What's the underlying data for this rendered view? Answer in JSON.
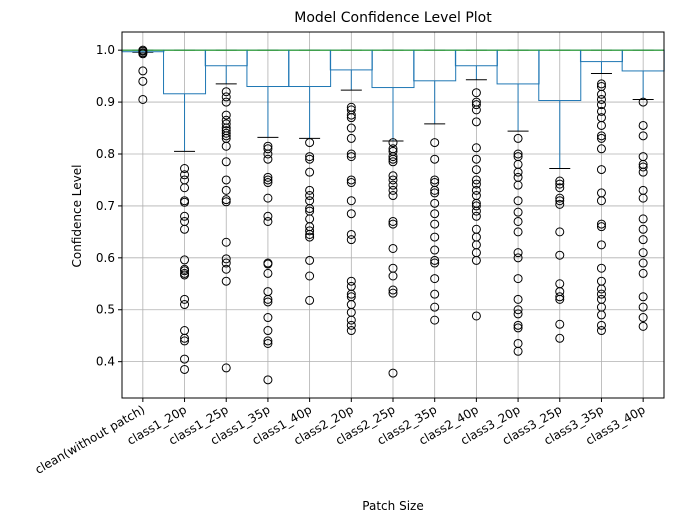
{
  "chart_data": {
    "type": "boxplot",
    "title": "Model Confidence Level Plot",
    "xlabel": "Patch Size",
    "ylabel": "Confidence Level",
    "ylim": [
      0.33,
      1.035
    ],
    "yticks": [
      0.4,
      0.5,
      0.6,
      0.7,
      0.8,
      0.9,
      1.0
    ],
    "ytick_labels": [
      "0.4",
      "0.5",
      "0.6",
      "0.7",
      "0.8",
      "0.9",
      "1.0"
    ],
    "grid": true,
    "categories": [
      "clean(without patch)",
      "class1_20p",
      "class1_25p",
      "class1_35p",
      "class1_40p",
      "class2_20p",
      "class2_25p",
      "class2_35p",
      "class2_40p",
      "class3_20p",
      "class3_25p",
      "class3_35p",
      "class3_40p"
    ],
    "colors": {
      "box": "#1f77b4",
      "median": "#2ca02c",
      "whisker": "#1f77b4",
      "cap": "#000000",
      "flier": "#000000",
      "grid": "#b0b0b0"
    },
    "boxes": [
      {
        "q1": 0.997,
        "median": 1.0,
        "q3": 1.0,
        "whislo": 0.996,
        "whishi": 1.0,
        "fliers": [
          0.905,
          0.94,
          0.96,
          0.993,
          0.995,
          0.998,
          1.0
        ]
      },
      {
        "q1": 0.916,
        "median": 1.0,
        "q3": 1.0,
        "whislo": 0.805,
        "whishi": 1.0,
        "fliers": [
          0.772,
          0.76,
          0.75,
          0.735,
          0.71,
          0.707,
          0.68,
          0.67,
          0.655,
          0.596,
          0.578,
          0.575,
          0.57,
          0.567,
          0.52,
          0.51,
          0.46,
          0.445,
          0.44,
          0.405,
          0.385
        ]
      },
      {
        "q1": 0.97,
        "median": 1.0,
        "q3": 1.0,
        "whislo": 0.935,
        "whishi": 1.0,
        "fliers": [
          0.92,
          0.91,
          0.9,
          0.875,
          0.865,
          0.858,
          0.85,
          0.845,
          0.84,
          0.835,
          0.83,
          0.815,
          0.785,
          0.75,
          0.73,
          0.712,
          0.708,
          0.63,
          0.598,
          0.59,
          0.578,
          0.555,
          0.388
        ]
      },
      {
        "q1": 0.93,
        "median": 1.0,
        "q3": 1.0,
        "whislo": 0.832,
        "whishi": 1.0,
        "fliers": [
          0.815,
          0.81,
          0.8,
          0.79,
          0.755,
          0.75,
          0.745,
          0.715,
          0.68,
          0.67,
          0.59,
          0.588,
          0.57,
          0.535,
          0.52,
          0.515,
          0.485,
          0.46,
          0.44,
          0.435,
          0.365
        ]
      },
      {
        "q1": 0.93,
        "median": 1.0,
        "q3": 1.0,
        "whislo": 0.83,
        "whishi": 1.0,
        "fliers": [
          0.822,
          0.795,
          0.79,
          0.765,
          0.73,
          0.72,
          0.71,
          0.695,
          0.69,
          0.675,
          0.66,
          0.652,
          0.645,
          0.64,
          0.595,
          0.565,
          0.518
        ]
      },
      {
        "q1": 0.962,
        "median": 1.0,
        "q3": 1.0,
        "whislo": 0.923,
        "whishi": 1.0,
        "fliers": [
          0.89,
          0.885,
          0.875,
          0.87,
          0.85,
          0.83,
          0.8,
          0.795,
          0.75,
          0.745,
          0.71,
          0.685,
          0.645,
          0.635,
          0.555,
          0.545,
          0.53,
          0.525,
          0.51,
          0.495,
          0.48,
          0.47,
          0.46
        ]
      },
      {
        "q1": 0.928,
        "median": 1.0,
        "q3": 1.0,
        "whislo": 0.825,
        "whishi": 1.0,
        "fliers": [
          0.822,
          0.81,
          0.805,
          0.795,
          0.79,
          0.785,
          0.758,
          0.75,
          0.74,
          0.73,
          0.72,
          0.67,
          0.665,
          0.618,
          0.58,
          0.565,
          0.538,
          0.532,
          0.378
        ]
      },
      {
        "q1": 0.941,
        "median": 1.0,
        "q3": 1.0,
        "whislo": 0.858,
        "whishi": 1.0,
        "fliers": [
          0.822,
          0.79,
          0.75,
          0.745,
          0.73,
          0.725,
          0.705,
          0.685,
          0.665,
          0.64,
          0.615,
          0.595,
          0.59,
          0.56,
          0.53,
          0.505,
          0.48
        ]
      },
      {
        "q1": 0.97,
        "median": 1.0,
        "q3": 1.0,
        "whislo": 0.943,
        "whishi": 1.0,
        "fliers": [
          0.918,
          0.9,
          0.895,
          0.885,
          0.862,
          0.812,
          0.79,
          0.77,
          0.75,
          0.742,
          0.73,
          0.72,
          0.705,
          0.7,
          0.69,
          0.68,
          0.655,
          0.64,
          0.625,
          0.61,
          0.595,
          0.488
        ]
      },
      {
        "q1": 0.935,
        "median": 1.0,
        "q3": 1.0,
        "whislo": 0.844,
        "whishi": 1.0,
        "fliers": [
          0.83,
          0.8,
          0.795,
          0.78,
          0.765,
          0.755,
          0.74,
          0.71,
          0.688,
          0.67,
          0.65,
          0.61,
          0.6,
          0.56,
          0.52,
          0.5,
          0.492,
          0.47,
          0.465,
          0.435,
          0.42
        ]
      },
      {
        "q1": 0.903,
        "median": 1.0,
        "q3": 1.0,
        "whislo": 0.772,
        "whishi": 1.0,
        "fliers": [
          0.748,
          0.742,
          0.735,
          0.715,
          0.71,
          0.703,
          0.65,
          0.605,
          0.55,
          0.535,
          0.525,
          0.52,
          0.472,
          0.445
        ]
      },
      {
        "q1": 0.978,
        "median": 1.0,
        "q3": 1.0,
        "whislo": 0.955,
        "whishi": 1.0,
        "fliers": [
          0.935,
          0.93,
          0.915,
          0.905,
          0.895,
          0.882,
          0.87,
          0.855,
          0.835,
          0.83,
          0.81,
          0.77,
          0.725,
          0.71,
          0.665,
          0.66,
          0.625,
          0.58,
          0.555,
          0.54,
          0.53,
          0.52,
          0.505,
          0.49,
          0.47,
          0.46
        ]
      },
      {
        "q1": 0.96,
        "median": 1.0,
        "q3": 1.0,
        "whislo": 0.905,
        "whishi": 1.0,
        "fliers": [
          0.9,
          0.855,
          0.835,
          0.795,
          0.78,
          0.775,
          0.765,
          0.73,
          0.715,
          0.675,
          0.655,
          0.635,
          0.61,
          0.59,
          0.57,
          0.525,
          0.505,
          0.485,
          0.468
        ]
      }
    ]
  }
}
